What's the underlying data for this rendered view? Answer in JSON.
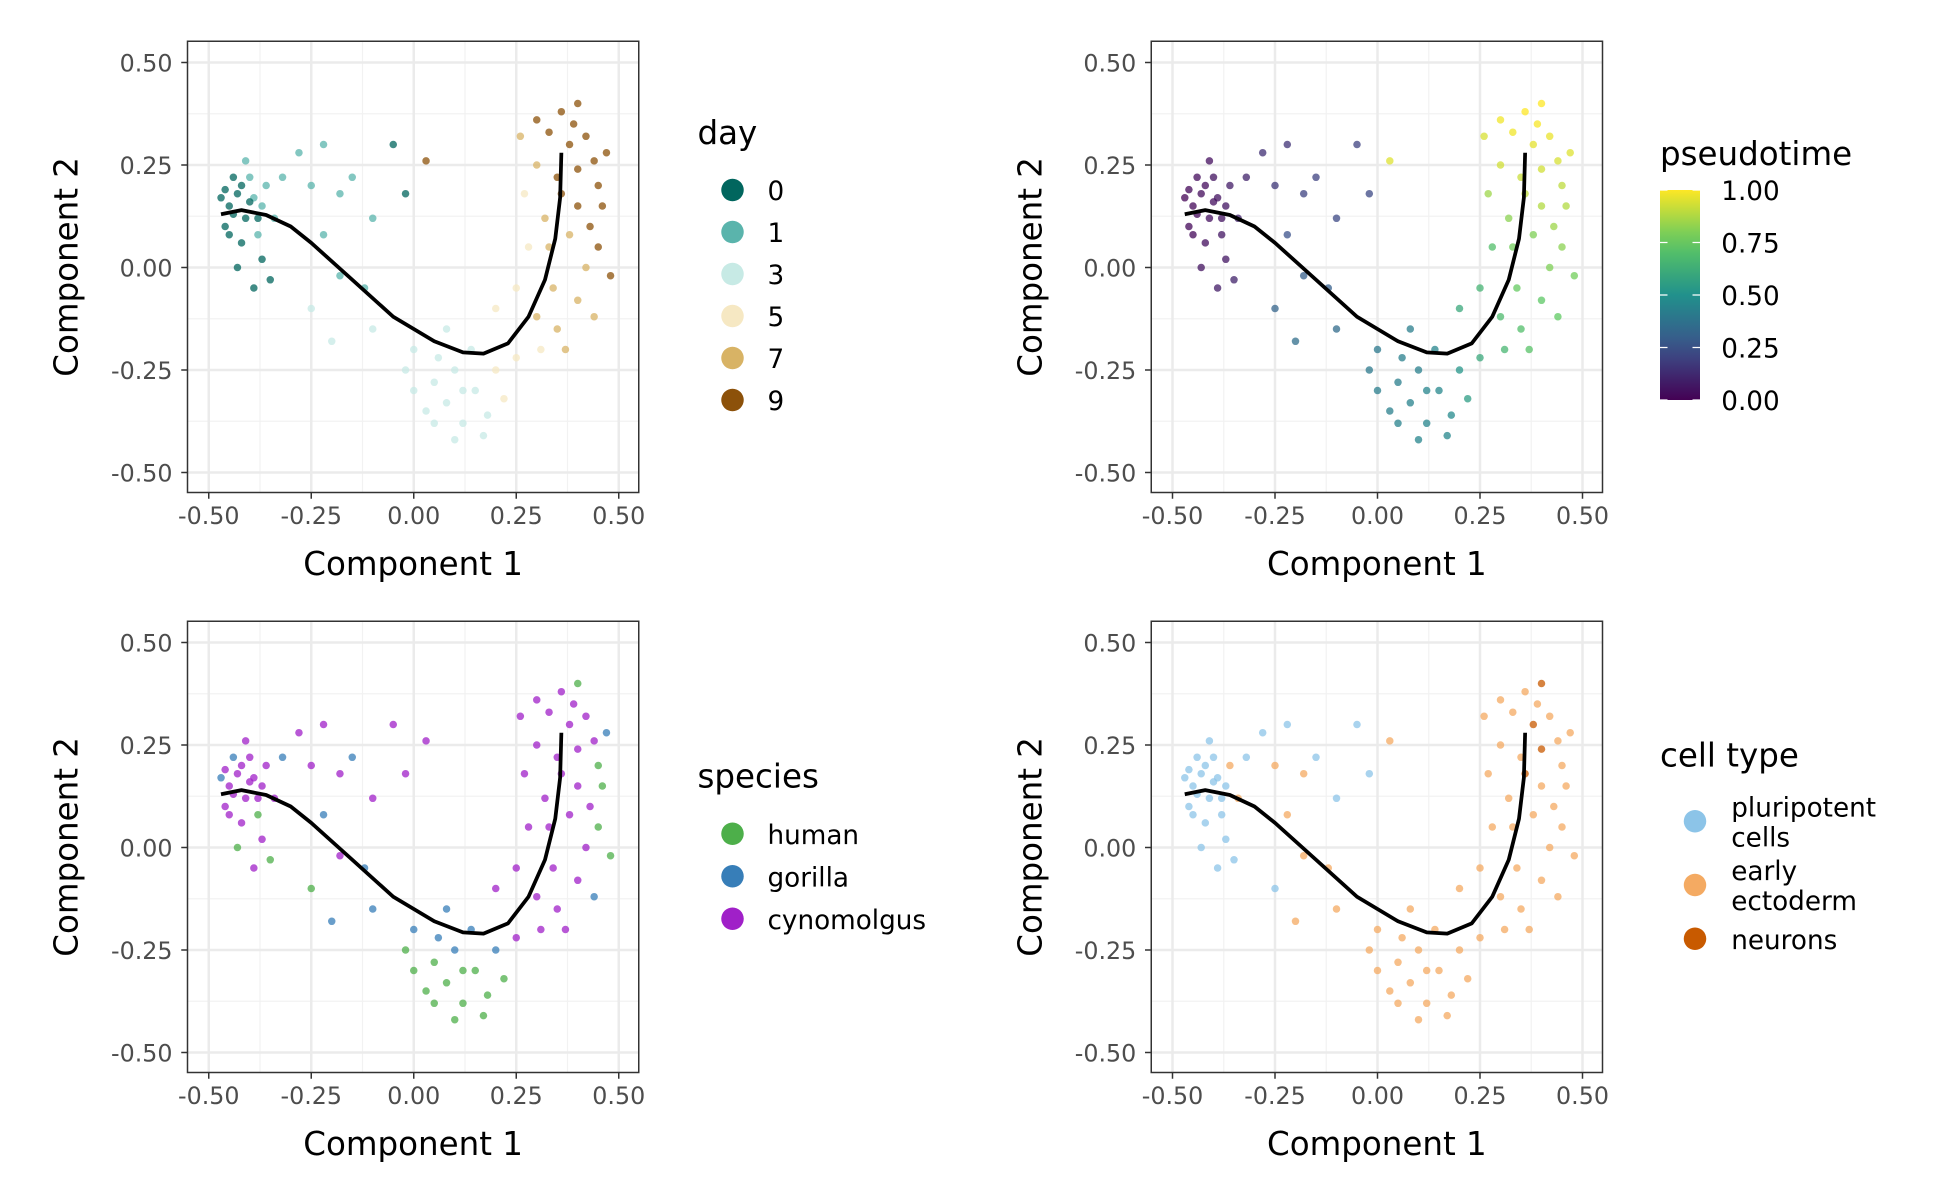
{
  "chart_data": [
    {
      "type": "scatter",
      "panel": "day",
      "xlabel": "Component 1",
      "ylabel": "Component 2",
      "xlim": [
        -0.55,
        0.55
      ],
      "ylim": [
        -0.55,
        0.55
      ],
      "grid": true,
      "legend": {
        "title": "day",
        "position": "right",
        "entries": [
          "0",
          "1",
          "3",
          "5",
          "7",
          "9"
        ],
        "colors": [
          "#01665e",
          "#5ab4ac",
          "#c7eae5",
          "#f6e8c3",
          "#d8b365",
          "#8c510a"
        ]
      }
    },
    {
      "type": "scatter",
      "panel": "pseudotime",
      "xlabel": "Component 1",
      "ylabel": "Component 2",
      "xlim": [
        -0.55,
        0.55
      ],
      "ylim": [
        -0.55,
        0.55
      ],
      "grid": true,
      "legend": {
        "title": "pseudotime",
        "position": "right",
        "colorbar": true,
        "ticks": [
          "1.00",
          "0.75",
          "0.50",
          "0.25",
          "0.00"
        ],
        "range": [
          0,
          1
        ],
        "palette": "viridis"
      }
    },
    {
      "type": "scatter",
      "panel": "species",
      "xlabel": "Component 1",
      "ylabel": "Component 2",
      "xlim": [
        -0.55,
        0.55
      ],
      "ylim": [
        -0.55,
        0.55
      ],
      "grid": true,
      "legend": {
        "title": "species",
        "position": "right",
        "entries": [
          "human",
          "gorilla",
          "cynomolgus"
        ],
        "colors": [
          "#4daf4a",
          "#377eb8",
          "#a020c8"
        ]
      }
    },
    {
      "type": "scatter",
      "panel": "cell_type",
      "xlabel": "Component 1",
      "ylabel": "Component 2",
      "xlim": [
        -0.55,
        0.55
      ],
      "ylim": [
        -0.55,
        0.55
      ],
      "grid": true,
      "legend": {
        "title": "cell type",
        "position": "right",
        "entries": [
          [
            "pluripotent",
            "cells"
          ],
          [
            "early",
            "ectoderm"
          ],
          [
            "neurons"
          ]
        ],
        "colors": [
          "#8cc4e8",
          "#f4aa62",
          "#c85a00"
        ]
      }
    }
  ],
  "ticks": {
    "x": [
      "-0.50",
      "-0.25",
      "0.00",
      "0.25",
      "0.50"
    ],
    "y": [
      "0.50",
      "0.25",
      "0.00",
      "-0.25",
      "-0.50"
    ],
    "values": [
      -0.5,
      -0.25,
      0,
      0.25,
      0.5
    ]
  },
  "trajectory": [
    [
      -0.47,
      0.13
    ],
    [
      -0.42,
      0.14
    ],
    [
      -0.36,
      0.128
    ],
    [
      -0.3,
      0.1
    ],
    [
      -0.25,
      0.06
    ],
    [
      -0.15,
      -0.03
    ],
    [
      -0.05,
      -0.12
    ],
    [
      0.05,
      -0.18
    ],
    [
      0.12,
      -0.207
    ],
    [
      0.17,
      -0.21
    ],
    [
      0.23,
      -0.185
    ],
    [
      0.28,
      -0.12
    ],
    [
      0.32,
      -0.03
    ],
    [
      0.345,
      0.07
    ],
    [
      0.357,
      0.17
    ],
    [
      0.36,
      0.28
    ]
  ],
  "points_fields": [
    "component1",
    "component2",
    "day",
    "pseudotime",
    "species_index",
    "cell_type_index"
  ],
  "points": [
    [
      -0.45,
      0.15,
      0,
      0.02,
      2,
      0
    ],
    [
      -0.43,
      0.18,
      0,
      0.03,
      2,
      0
    ],
    [
      -0.46,
      0.1,
      0,
      0.02,
      2,
      0
    ],
    [
      -0.41,
      0.12,
      0,
      0.04,
      2,
      0
    ],
    [
      -0.44,
      0.22,
      0,
      0.03,
      1,
      0
    ],
    [
      -0.39,
      0.17,
      1,
      0.05,
      2,
      0
    ],
    [
      -0.42,
      0.06,
      0,
      0.04,
      2,
      0
    ],
    [
      -0.38,
      0.08,
      1,
      0.06,
      0,
      0
    ],
    [
      -0.47,
      0.17,
      0,
      0.01,
      1,
      0
    ],
    [
      -0.4,
      0.22,
      1,
      0.05,
      2,
      0
    ],
    [
      -0.36,
      0.2,
      1,
      0.08,
      2,
      1
    ],
    [
      -0.37,
      0.02,
      0,
      0.06,
      2,
      0
    ],
    [
      -0.34,
      0.12,
      1,
      0.1,
      2,
      1
    ],
    [
      -0.43,
      0.0,
      0,
      0.05,
      0,
      0
    ],
    [
      -0.35,
      -0.03,
      0,
      0.1,
      0,
      0
    ],
    [
      -0.41,
      0.26,
      1,
      0.04,
      2,
      0
    ],
    [
      -0.45,
      0.08,
      0,
      0.02,
      2,
      0
    ],
    [
      -0.39,
      -0.05,
      0,
      0.08,
      2,
      0
    ],
    [
      -0.32,
      0.22,
      1,
      0.1,
      1,
      0
    ],
    [
      -0.44,
      0.13,
      0,
      0.02,
      2,
      0
    ],
    [
      -0.4,
      0.16,
      0,
      0.04,
      2,
      0
    ],
    [
      -0.38,
      0.12,
      0,
      0.05,
      2,
      0
    ],
    [
      -0.42,
      0.2,
      0,
      0.03,
      2,
      0
    ],
    [
      -0.46,
      0.19,
      0,
      0.02,
      2,
      0
    ],
    [
      -0.37,
      0.15,
      1,
      0.06,
      2,
      0
    ],
    [
      -0.28,
      0.28,
      1,
      0.14,
      2,
      0
    ],
    [
      -0.25,
      0.2,
      1,
      0.16,
      2,
      1
    ],
    [
      -0.22,
      0.3,
      1,
      0.15,
      2,
      0
    ],
    [
      -0.18,
      0.18,
      1,
      0.2,
      2,
      1
    ],
    [
      -0.15,
      0.22,
      1,
      0.2,
      1,
      0
    ],
    [
      -0.1,
      0.12,
      1,
      0.22,
      2,
      0
    ],
    [
      -0.05,
      0.3,
      0,
      0.2,
      2,
      0
    ],
    [
      -0.02,
      0.18,
      0,
      0.22,
      2,
      0
    ],
    [
      -0.22,
      0.08,
      1,
      0.25,
      1,
      1
    ],
    [
      -0.18,
      -0.02,
      1,
      0.3,
      2,
      1
    ],
    [
      -0.25,
      -0.1,
      3,
      0.32,
      0,
      0
    ],
    [
      -0.12,
      -0.05,
      1,
      0.3,
      1,
      1
    ],
    [
      -0.1,
      -0.15,
      3,
      0.35,
      1,
      1
    ],
    [
      0.03,
      0.26,
      9,
      0.95,
      2,
      1
    ],
    [
      -0.2,
      -0.18,
      3,
      0.36,
      1,
      1
    ],
    [
      0.0,
      -0.2,
      3,
      0.4,
      1,
      1
    ],
    [
      0.05,
      -0.28,
      3,
      0.42,
      0,
      1
    ],
    [
      0.08,
      -0.33,
      3,
      0.44,
      0,
      1
    ],
    [
      0.12,
      -0.38,
      3,
      0.45,
      0,
      1
    ],
    [
      0.1,
      -0.25,
      3,
      0.43,
      1,
      1
    ],
    [
      0.15,
      -0.3,
      3,
      0.46,
      0,
      1
    ],
    [
      0.18,
      -0.36,
      3,
      0.47,
      0,
      1
    ],
    [
      0.05,
      -0.38,
      3,
      0.44,
      0,
      1
    ],
    [
      0.2,
      -0.25,
      5,
      0.52,
      1,
      1
    ],
    [
      0.14,
      -0.2,
      3,
      0.45,
      1,
      1
    ],
    [
      0.0,
      -0.3,
      3,
      0.42,
      0,
      1
    ],
    [
      -0.02,
      -0.25,
      3,
      0.4,
      0,
      1
    ],
    [
      0.1,
      -0.42,
      3,
      0.45,
      0,
      1
    ],
    [
      0.22,
      -0.32,
      5,
      0.55,
      0,
      1
    ],
    [
      0.25,
      -0.22,
      5,
      0.6,
      2,
      1
    ],
    [
      0.08,
      -0.15,
      3,
      0.42,
      1,
      1
    ],
    [
      0.17,
      -0.41,
      3,
      0.46,
      0,
      1
    ],
    [
      0.03,
      -0.35,
      3,
      0.43,
      0,
      1
    ],
    [
      0.12,
      -0.3,
      3,
      0.45,
      0,
      1
    ],
    [
      0.06,
      -0.22,
      3,
      0.43,
      1,
      1
    ],
    [
      0.2,
      -0.1,
      5,
      0.6,
      2,
      1
    ],
    [
      0.25,
      -0.05,
      5,
      0.65,
      2,
      1
    ],
    [
      0.28,
      0.05,
      5,
      0.7,
      2,
      1
    ],
    [
      0.3,
      -0.12,
      7,
      0.68,
      2,
      1
    ],
    [
      0.35,
      -0.15,
      7,
      0.7,
      2,
      1
    ],
    [
      0.4,
      -0.08,
      7,
      0.74,
      2,
      1
    ],
    [
      0.42,
      0.0,
      7,
      0.8,
      2,
      1
    ],
    [
      0.45,
      0.05,
      9,
      0.82,
      0,
      1
    ],
    [
      0.38,
      0.08,
      7,
      0.8,
      2,
      1
    ],
    [
      0.32,
      0.12,
      7,
      0.82,
      2,
      1
    ],
    [
      0.4,
      0.15,
      9,
      0.88,
      2,
      1
    ],
    [
      0.45,
      0.2,
      9,
      0.9,
      0,
      1
    ],
    [
      0.35,
      0.22,
      9,
      0.92,
      2,
      1
    ],
    [
      0.3,
      0.25,
      7,
      0.93,
      2,
      1
    ],
    [
      0.38,
      0.3,
      9,
      0.96,
      2,
      2
    ],
    [
      0.42,
      0.32,
      9,
      0.97,
      2,
      1
    ],
    [
      0.33,
      0.33,
      9,
      0.98,
      2,
      1
    ],
    [
      0.36,
      0.38,
      9,
      1.0,
      2,
      1
    ],
    [
      0.4,
      0.4,
      9,
      1.0,
      0,
      2
    ],
    [
      0.3,
      0.36,
      9,
      0.98,
      2,
      1
    ],
    [
      0.47,
      0.28,
      9,
      0.95,
      1,
      1
    ],
    [
      0.27,
      0.18,
      5,
      0.85,
      2,
      1
    ],
    [
      0.44,
      -0.12,
      7,
      0.75,
      1,
      1
    ],
    [
      0.48,
      -0.02,
      9,
      0.78,
      0,
      1
    ],
    [
      0.37,
      -0.2,
      7,
      0.72,
      2,
      1
    ],
    [
      0.26,
      0.32,
      7,
      0.94,
      2,
      1
    ],
    [
      0.4,
      0.24,
      9,
      0.93,
      2,
      2
    ],
    [
      0.33,
      0.05,
      7,
      0.78,
      2,
      1
    ],
    [
      0.36,
      0.18,
      9,
      0.9,
      2,
      2
    ],
    [
      0.43,
      0.1,
      9,
      0.85,
      2,
      1
    ],
    [
      0.34,
      -0.05,
      7,
      0.76,
      2,
      1
    ],
    [
      0.39,
      0.35,
      9,
      0.99,
      2,
      1
    ],
    [
      0.44,
      0.26,
      9,
      0.94,
      2,
      1
    ],
    [
      0.31,
      -0.2,
      5,
      0.66,
      2,
      1
    ],
    [
      0.46,
      0.15,
      9,
      0.88,
      0,
      1
    ]
  ]
}
